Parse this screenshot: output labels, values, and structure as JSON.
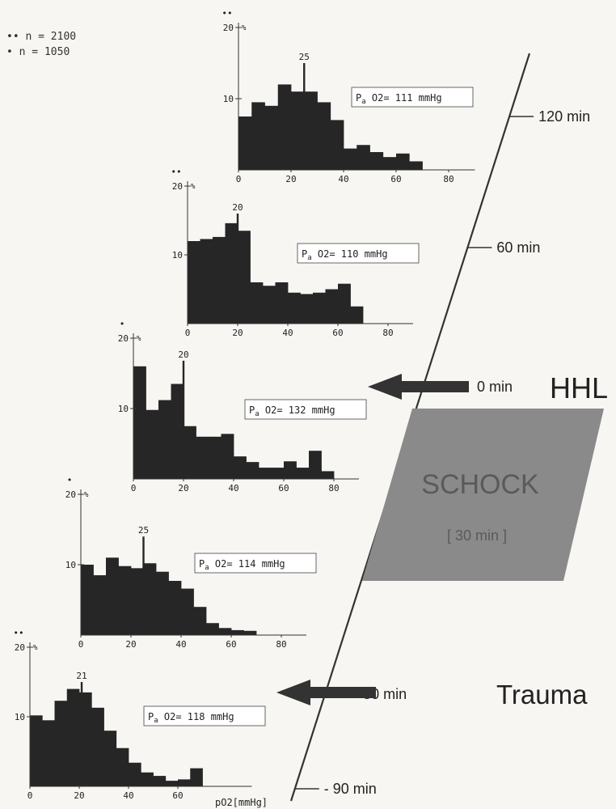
{
  "legend": [
    {
      "marker": "••",
      "label": "n = 2100"
    },
    {
      "marker": "•",
      "label": "n = 1050"
    }
  ],
  "timeline": [
    {
      "label": "120 min"
    },
    {
      "label": "60 min"
    },
    {
      "label": "0 min"
    },
    {
      "label": "- 50 min"
    },
    {
      "label": "- 90 min"
    }
  ],
  "events": [
    {
      "label": "HHL",
      "time": "0 min"
    },
    {
      "label": "Trauma",
      "time": "- 50 min"
    }
  ],
  "shock": {
    "label": "SCHOCK",
    "duration": "[ 30 min ]"
  },
  "x_unit_label": "pO2[mmHg]",
  "colors": {
    "bar": "#262626",
    "shock": "#8a8a8a",
    "axis": "#333333"
  },
  "chart_data": [
    {
      "type": "bar",
      "time": "120 min",
      "n_marker": "••",
      "y_unit": "%",
      "bin_width": 5,
      "x_start": 0,
      "xlim": [
        0,
        90
      ],
      "ylim": [
        0,
        20
      ],
      "xticks": [
        0,
        20,
        40,
        60,
        80
      ],
      "yticks": [
        10,
        20
      ],
      "values": [
        7.5,
        9.5,
        9,
        12,
        11,
        11,
        9.5,
        7,
        3,
        3.5,
        2.5,
        1.8,
        2.3,
        1.2
      ],
      "peak_x": 25,
      "peak_value": 15,
      "peak_label": "25",
      "annotation": {
        "sym": "P",
        "sub": "a",
        "rest": " O2= 111 mmHg"
      }
    },
    {
      "type": "bar",
      "time": "60 min",
      "n_marker": "••",
      "y_unit": "%",
      "bin_width": 5,
      "x_start": 0,
      "xlim": [
        0,
        90
      ],
      "ylim": [
        0,
        20
      ],
      "xticks": [
        0,
        20,
        40,
        60,
        80
      ],
      "yticks": [
        10,
        20
      ],
      "values": [
        12,
        12.3,
        12.6,
        14.6,
        13.5,
        6,
        5.5,
        6,
        4.5,
        4.3,
        4.5,
        5,
        5.8,
        2.5
      ],
      "peak_x": 20,
      "peak_value": 16,
      "peak_label": "20",
      "annotation": {
        "sym": "P",
        "sub": "a",
        "rest": " O2= 110 mmHg"
      }
    },
    {
      "type": "bar",
      "time": "0 min",
      "n_marker": "•",
      "y_unit": "%",
      "bin_width": 5,
      "x_start": 0,
      "xlim": [
        0,
        90
      ],
      "ylim": [
        0,
        20
      ],
      "xticks": [
        0,
        20,
        40,
        60,
        80
      ],
      "yticks": [
        10,
        20
      ],
      "values": [
        16,
        9.8,
        11.2,
        13.5,
        7.5,
        6,
        6,
        6.4,
        3.2,
        2.4,
        1.6,
        1.6,
        2.5,
        1.6,
        4,
        1.1
      ],
      "peak_x": 20,
      "peak_value": 16.8,
      "peak_label": "20",
      "annotation": {
        "sym": "P",
        "sub": "a",
        "rest": " O2= 132 mmHg"
      }
    },
    {
      "type": "bar",
      "time": "-",
      "n_marker": "•",
      "y_unit": "%",
      "bin_width": 5,
      "x_start": 0,
      "xlim": [
        0,
        90
      ],
      "ylim": [
        0,
        20
      ],
      "xticks": [
        0,
        20,
        40,
        60,
        80
      ],
      "yticks": [
        10,
        20
      ],
      "values": [
        10,
        8.5,
        11,
        9.8,
        9.5,
        10.2,
        9,
        7.7,
        6.6,
        4,
        1.7,
        1,
        0.7,
        0.6
      ],
      "peak_x": 25,
      "peak_value": 14,
      "peak_label": "25",
      "annotation": {
        "sym": "P",
        "sub": "a",
        "rest": " O2= 114 mmHg"
      }
    },
    {
      "type": "bar",
      "time": "- 50 min",
      "n_marker": "••",
      "y_unit": "%",
      "bin_width": 5,
      "x_start": 0,
      "xlim": [
        0,
        90
      ],
      "ylim": [
        0,
        20
      ],
      "xticks": [
        0,
        20,
        40,
        60
      ],
      "yticks": [
        10,
        20
      ],
      "values": [
        10.2,
        9.5,
        12.3,
        14,
        13.5,
        11.3,
        8,
        5.5,
        3.4,
        2,
        1.5,
        0.8,
        1,
        2.6
      ],
      "peak_x": 21,
      "peak_value": 15,
      "peak_label": "21",
      "annotation": {
        "sym": "P",
        "sub": "a",
        "rest": " O2= 118 mmHg"
      }
    }
  ]
}
